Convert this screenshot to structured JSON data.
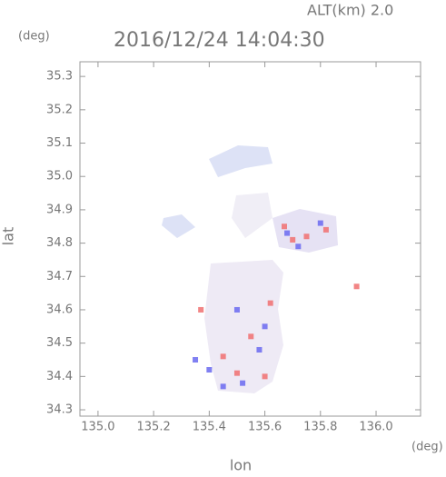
{
  "chart_data": {
    "type": "scatter",
    "title": "2016/12/24 14:04:30",
    "subtitle": "ALT(km) 2.0",
    "y_unit": "(deg)",
    "x_unit": "(deg)",
    "y_label": "lat",
    "x_label": "lon",
    "xlim": [
      134.935,
      136.16
    ],
    "ylim": [
      34.281,
      35.344
    ],
    "xticks": [
      {
        "value": 135,
        "label": "135.0"
      },
      135.2,
      135.4,
      135.6,
      135.8,
      {
        "value": 136,
        "label": "136.0"
      }
    ],
    "yticks": [
      34.3,
      34.4,
      34.5,
      34.6,
      34.7,
      34.8,
      34.9,
      {
        "value": 35,
        "label": "35.0"
      },
      35.1,
      35.2,
      35.3
    ],
    "series": [
      {
        "color": "#f07070",
        "x": [
          135.67,
          135.75,
          135.82,
          135.93,
          135.37,
          135.45,
          135.5,
          135.6,
          135.55,
          135.7,
          135.62
        ],
        "y": [
          34.85,
          34.82,
          34.84,
          34.67,
          34.6,
          34.46,
          34.41,
          34.4,
          34.52,
          34.81,
          34.62
        ]
      },
      {
        "color": "#6a6af0",
        "x": [
          135.45,
          135.6,
          135.72,
          135.68,
          135.5,
          135.4,
          135.58,
          135.52,
          135.8,
          135.35
        ],
        "y": [
          34.37,
          34.55,
          34.79,
          34.83,
          34.6,
          34.42,
          34.48,
          34.38,
          34.86,
          34.45
        ]
      }
    ]
  }
}
